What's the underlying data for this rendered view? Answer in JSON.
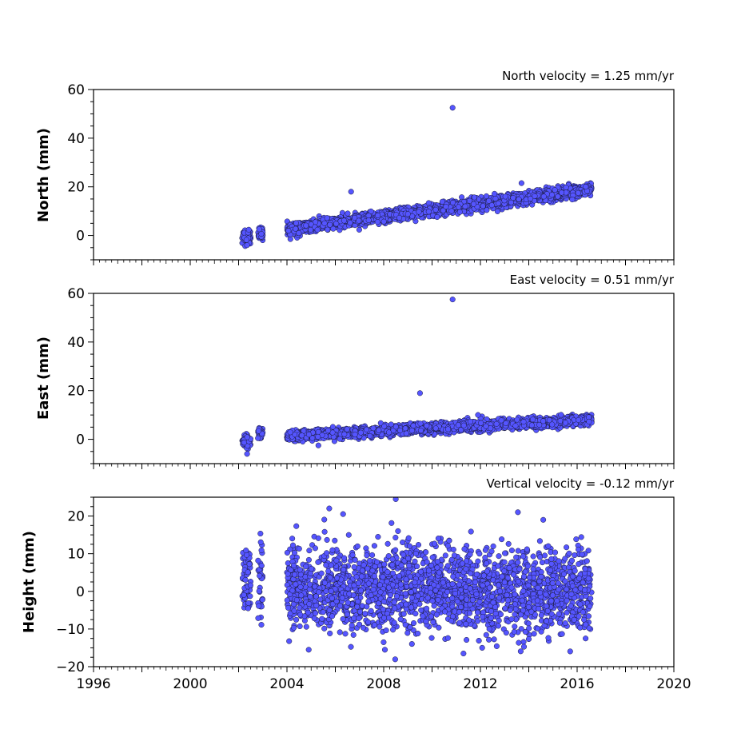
{
  "chart_data": [
    {
      "type": "scatter",
      "title": "North velocity = 1.25 mm/yr",
      "ylabel": "North (mm)",
      "xlim": [
        1996,
        2020
      ],
      "ylim": [
        -10,
        60
      ],
      "yticks": [
        0,
        20,
        40,
        60
      ],
      "xticks": [
        "1996",
        "2000",
        "2004",
        "2008",
        "2012",
        "2016",
        "2020"
      ],
      "x_tick_labels_shown": false,
      "marker_color": "#5555ff",
      "segments": [
        {
          "x_start": 2002.15,
          "x_end": 2002.5,
          "y_start": -0.5,
          "y_end": -0.5,
          "scatter": 1.6
        },
        {
          "x_start": 2002.8,
          "x_end": 2003.0,
          "y_start": 0.8,
          "y_end": 1.0,
          "scatter": 1.3
        },
        {
          "x_start": 2004.0,
          "x_end": 2016.6,
          "y_start": 2.5,
          "y_end": 19.0,
          "scatter": 1.2
        }
      ],
      "outliers": [
        {
          "x": 2010.85,
          "y": 52.5
        },
        {
          "x": 2006.65,
          "y": 18.0
        },
        {
          "x": 2013.7,
          "y": 21.5
        },
        {
          "x": 2002.35,
          "y": -4.0
        }
      ]
    },
    {
      "type": "scatter",
      "title": "East velocity = 0.51 mm/yr",
      "ylabel": "East (mm)",
      "xlim": [
        1996,
        2020
      ],
      "ylim": [
        -10,
        60
      ],
      "yticks": [
        0,
        20,
        40,
        60
      ],
      "xticks": [
        "1996",
        "2000",
        "2004",
        "2008",
        "2012",
        "2016",
        "2020"
      ],
      "x_tick_labels_shown": false,
      "marker_color": "#5555ff",
      "segments": [
        {
          "x_start": 2002.15,
          "x_end": 2002.5,
          "y_start": -0.5,
          "y_end": -0.5,
          "scatter": 1.5
        },
        {
          "x_start": 2002.8,
          "x_end": 2003.0,
          "y_start": 2.0,
          "y_end": 2.5,
          "scatter": 1.2
        },
        {
          "x_start": 2004.0,
          "x_end": 2016.6,
          "y_start": 1.3,
          "y_end": 8.0,
          "scatter": 1.0
        }
      ],
      "outliers": [
        {
          "x": 2010.85,
          "y": 57.5
        },
        {
          "x": 2009.5,
          "y": 19.0
        },
        {
          "x": 2002.35,
          "y": -6.0
        },
        {
          "x": 2005.3,
          "y": -2.5
        },
        {
          "x": 2011.9,
          "y": 10.0
        }
      ]
    },
    {
      "type": "scatter",
      "title": "Vertical velocity = -0.12 mm/yr",
      "ylabel": "Height (mm)",
      "xlim": [
        1996,
        2020
      ],
      "ylim": [
        -20,
        25
      ],
      "yticks": [
        -20,
        -10,
        0,
        10,
        20
      ],
      "ytick_labels": [
        "−20",
        "−10",
        "0",
        "10",
        "20"
      ],
      "xticks": [
        "1996",
        "2000",
        "2004",
        "2008",
        "2012",
        "2016",
        "2020"
      ],
      "x_tick_labels_shown": true,
      "marker_color": "#5555ff",
      "segments": [
        {
          "x_start": 2002.15,
          "x_end": 2002.5,
          "y_start": 2.5,
          "y_end": 2.5,
          "scatter": 4.5
        },
        {
          "x_start": 2002.8,
          "x_end": 2003.0,
          "y_start": 3.0,
          "y_end": 3.0,
          "scatter": 6.5
        },
        {
          "x_start": 2004.0,
          "x_end": 2016.6,
          "y_start": 1.0,
          "y_end": 0.0,
          "scatter": 5.5
        }
      ],
      "outliers": [
        {
          "x": 2008.5,
          "y": 24.5
        },
        {
          "x": 2005.75,
          "y": 22.0
        },
        {
          "x": 2013.55,
          "y": 21.0
        },
        {
          "x": 2011.3,
          "y": -16.5
        },
        {
          "x": 2004.9,
          "y": -15.5
        },
        {
          "x": 2014.6,
          "y": 19.0
        },
        {
          "x": 2016.35,
          "y": -12.5
        }
      ]
    }
  ]
}
